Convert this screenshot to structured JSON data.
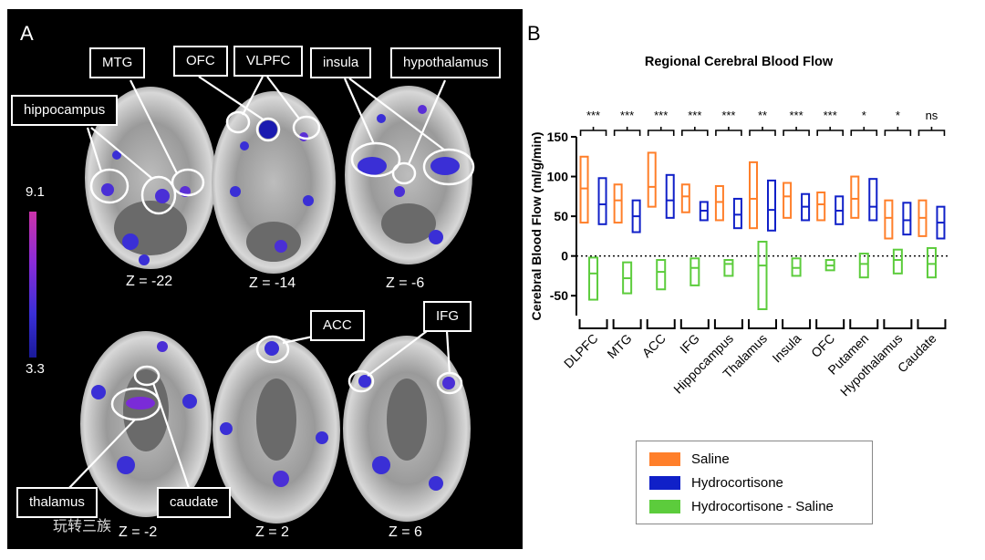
{
  "panel_a": {
    "letter": "A",
    "colorbar": {
      "max_label": "9.1",
      "min_label": "3.3",
      "colors": [
        "#cc33aa",
        "#8a2bd8",
        "#3a2fd6",
        "#1a1a9a"
      ]
    },
    "slices": [
      {
        "z": "Z = -22"
      },
      {
        "z": "Z = -14"
      },
      {
        "z": "Z = -6"
      },
      {
        "z": "Z = -2"
      },
      {
        "z": "Z = 2"
      },
      {
        "z": "Z = 6"
      }
    ],
    "region_labels": [
      "MTG",
      "OFC",
      "VLPFC",
      "insula",
      "hypothalamus",
      "hippocampus",
      "ACC",
      "IFG",
      "thalamus",
      "caudate"
    ],
    "watermark": "玩转三族"
  },
  "panel_b": {
    "letter": "B"
  },
  "chart_data": {
    "type": "floating-bar",
    "title": "Regional Cerebral Blood Flow",
    "ylabel": "Cerebral Blood Flow (ml/g/min)",
    "ylim": [
      -75,
      150
    ],
    "yticks": [
      -50,
      0,
      50,
      100,
      150
    ],
    "zero_line": "dotted",
    "categories": [
      "DLPFC",
      "MTG",
      "ACC",
      "IFG",
      "Hippocampus",
      "Thalamus",
      "Insula",
      "OFC",
      "Putamen",
      "Hypothalamus",
      "Caudate"
    ],
    "significance": [
      "***",
      "***",
      "***",
      "***",
      "***",
      "**",
      "***",
      "***",
      "*",
      "*",
      "ns"
    ],
    "series": [
      {
        "name": "Saline",
        "color": "#ff7f2a",
        "low": [
          42,
          42,
          62,
          55,
          45,
          35,
          48,
          45,
          48,
          22,
          25
        ],
        "mean": [
          85,
          70,
          87,
          75,
          68,
          72,
          75,
          65,
          72,
          48,
          48
        ],
        "high": [
          125,
          90,
          130,
          90,
          88,
          118,
          92,
          80,
          100,
          70,
          70
        ]
      },
      {
        "name": "Hydrocortisone",
        "color": "#1020c8",
        "low": [
          40,
          30,
          48,
          45,
          35,
          32,
          45,
          40,
          45,
          27,
          22
        ],
        "mean": [
          65,
          50,
          70,
          57,
          52,
          58,
          62,
          57,
          62,
          45,
          42
        ],
        "high": [
          98,
          70,
          102,
          68,
          72,
          95,
          78,
          75,
          97,
          67,
          62
        ]
      },
      {
        "name": "Hydrocortisone - Saline",
        "color": "#5ccc3c",
        "low": [
          -55,
          -47,
          -42,
          -37,
          -25,
          -67,
          -25,
          -18,
          -27,
          -22,
          -27
        ],
        "mean": [
          -22,
          -28,
          -20,
          -15,
          -10,
          -12,
          -15,
          -12,
          -10,
          -5,
          -10
        ],
        "high": [
          -2,
          -8,
          -5,
          -3,
          -5,
          18,
          -3,
          -5,
          3,
          8,
          10
        ]
      }
    ],
    "legend_position": "bottom-right"
  }
}
